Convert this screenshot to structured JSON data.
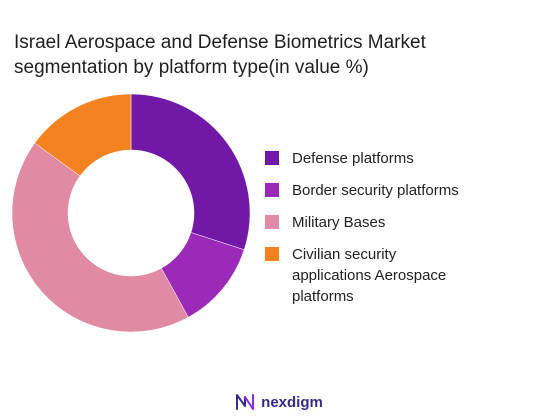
{
  "title_lines": [
    "Israel Aerospace and Defense Biometrics Market",
    "segmentation by platform type(in value %)"
  ],
  "chart_data": {
    "type": "pie",
    "variant": "donut",
    "title": "Israel Aerospace and Defense Biometrics Market segmentation by platform type(in value %)",
    "categories": [
      "Defense platforms",
      "Border security platforms",
      "Military Bases",
      "Civilian security applications Aerospace platforms"
    ],
    "values": [
      30,
      12,
      43,
      15
    ],
    "colors": [
      "#7119a6",
      "#9b2ab8",
      "#e08aa4",
      "#f58220"
    ],
    "legend_position": "right"
  },
  "legend": [
    {
      "label": "Defense platforms",
      "color": "#7119a6"
    },
    {
      "label": "Border security platforms",
      "color": "#9b2ab8"
    },
    {
      "label": "Military Bases",
      "color": "#e08aa4"
    },
    {
      "label": "Civilian security\napplications Aerospace\nplatforms",
      "color": "#f58220"
    }
  ],
  "brand": {
    "name": "nexdigm",
    "logo_icon": "nexdigm-logo-icon",
    "color": "#3a2a8c"
  }
}
